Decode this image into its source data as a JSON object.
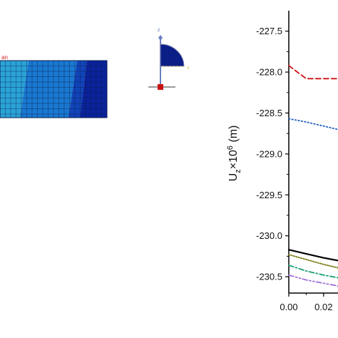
{
  "mesh": {
    "edge_label": "an",
    "colors": [
      "#2aa3d6",
      "#1a78d0",
      "#1144b8",
      "#0a229a"
    ]
  },
  "triad": {
    "z_label": "z",
    "x_label": "x",
    "colors": {
      "z": "#6a7fc0",
      "x": "#d8c860",
      "quadrant": "#0b1d87",
      "anchor": "#cc1111"
    }
  },
  "chart_data": {
    "type": "line",
    "title": "",
    "xlabel": "",
    "ylabel": "U",
    "ylabel_sub": "z",
    "ylabel_mid": "×10",
    "ylabel_sup": "6",
    "ylabel_unit": " (m)",
    "ylim": [
      -230.7,
      -227.25
    ],
    "xlim": [
      0.0,
      0.05
    ],
    "yticks": [
      -227.5,
      -228.0,
      -228.5,
      -229.0,
      -229.5,
      -230.0,
      -230.5
    ],
    "ytick_labels": [
      "-227.5",
      "-228.0",
      "-228.5",
      "-229.0",
      "-229.5",
      "-230.0",
      "-230.5"
    ],
    "xticks": [
      0.0,
      0.02
    ],
    "xtick_labels": [
      "0.00",
      "0.02"
    ],
    "grid": false,
    "series": [
      {
        "style": "dash",
        "color": "#cc1111",
        "x": [
          0.0,
          0.003,
          0.01,
          0.02,
          0.03
        ],
        "y": [
          -227.92,
          -227.97,
          -228.08,
          -228.08,
          -228.08
        ]
      },
      {
        "style": "dot",
        "color": "#1f5fc0",
        "x": [
          0.0,
          0.01,
          0.02,
          0.03
        ],
        "y": [
          -228.57,
          -228.61,
          -228.66,
          -228.71
        ]
      },
      {
        "style": "solid",
        "color": "#000000",
        "x": [
          0.0,
          0.01,
          0.02,
          0.03
        ],
        "y": [
          -230.17,
          -230.22,
          -230.27,
          -230.31
        ]
      },
      {
        "style": "shortdot",
        "color": "#7a7a10",
        "x": [
          0.0,
          0.01,
          0.02,
          0.03
        ],
        "y": [
          -230.23,
          -230.29,
          -230.35,
          -230.4
        ]
      },
      {
        "style": "dashdot",
        "color": "#18a070",
        "x": [
          0.0,
          0.01,
          0.02,
          0.03
        ],
        "y": [
          -230.36,
          -230.43,
          -230.48,
          -230.52
        ]
      },
      {
        "style": "dashdotdot",
        "color": "#a070d8",
        "x": [
          0.0,
          0.01,
          0.02,
          0.03
        ],
        "y": [
          -230.48,
          -230.54,
          -230.58,
          -230.62
        ]
      }
    ]
  }
}
